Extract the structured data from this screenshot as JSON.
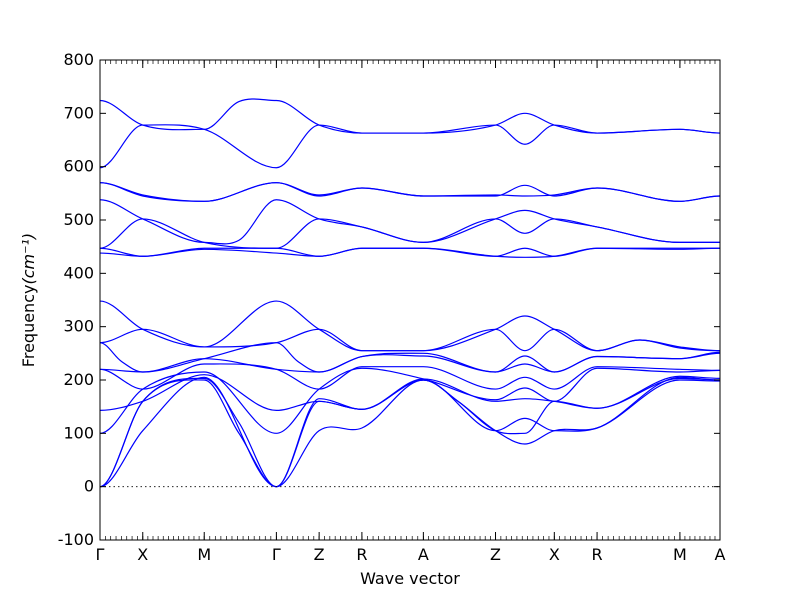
{
  "chart_data": {
    "type": "line",
    "title": "",
    "xlabel": "Wave vector",
    "ylabel": "Frequency",
    "ylabel_unit": "(cm⁻¹)",
    "ylim": [
      -100,
      800
    ],
    "yticks": [
      -100,
      0,
      100,
      200,
      300,
      400,
      500,
      600,
      700,
      800
    ],
    "zero_line": 0,
    "k_points": [
      {
        "label": "Γ",
        "x": 0.0
      },
      {
        "label": "X",
        "x": 0.8
      },
      {
        "label": "M",
        "x": 1.95
      },
      {
        "label": "Γ",
        "x": 3.3
      },
      {
        "label": "Z",
        "x": 4.1
      },
      {
        "label": "R",
        "x": 4.9
      },
      {
        "label": "A",
        "x": 6.05
      },
      {
        "label": "Z",
        "x": 7.4
      },
      {
        "label": "X",
        "x": 8.5
      },
      {
        "label": "R",
        "x": 9.3
      },
      {
        "label": "M",
        "x": 10.85
      },
      {
        "label": "A",
        "x": 11.6
      }
    ],
    "bands": [
      {
        "x": [
          0,
          0.8,
          1.95,
          2.6,
          3.3,
          4.1,
          4.9,
          6.05,
          6.7,
          7.4,
          7.95,
          8.5,
          9.3,
          10.85,
          11.6
        ],
        "y": [
          0,
          160,
          200,
          100,
          0,
          160,
          145,
          200,
          160,
          105,
          80,
          105,
          110,
          200,
          198
        ]
      },
      {
        "x": [
          0,
          0.8,
          1.95,
          2.6,
          3.3,
          4.1,
          4.9,
          6.05,
          6.7,
          7.4,
          7.95,
          8.5,
          9.3,
          10.85,
          11.6
        ],
        "y": [
          0,
          160,
          203,
          120,
          0,
          165,
          145,
          200,
          160,
          105,
          100,
          160,
          147,
          203,
          200
        ]
      },
      {
        "x": [
          0,
          0.8,
          1.95,
          3.3,
          4.1,
          4.9,
          6.05,
          7.4,
          7.95,
          8.5,
          9.3,
          10.85,
          11.6
        ],
        "y": [
          0,
          105,
          205,
          0,
          105,
          110,
          200,
          105,
          128,
          105,
          110,
          205,
          200
        ]
      },
      {
        "x": [
          0,
          0.8,
          1.95,
          3.3,
          4.1,
          4.9,
          6.05,
          7.4,
          7.95,
          8.5,
          9.3,
          10.85,
          11.6
        ],
        "y": [
          143,
          160,
          210,
          143,
          160,
          145,
          202,
          160,
          165,
          160,
          147,
          207,
          203
        ]
      },
      {
        "x": [
          0,
          0.8,
          1.95,
          3.3,
          4.1,
          4.9,
          6.05,
          7.4,
          7.95,
          8.5,
          9.3,
          10.85,
          11.6
        ],
        "y": [
          100,
          183,
          215,
          100,
          183,
          222,
          202,
          163,
          185,
          160,
          222,
          215,
          218
        ]
      },
      {
        "x": [
          0,
          0.8,
          1.95,
          3.3,
          4.1,
          4.9,
          6.05,
          7.4,
          7.95,
          8.5,
          9.3,
          10.85,
          11.6
        ],
        "y": [
          220,
          183,
          230,
          220,
          183,
          225,
          225,
          183,
          205,
          183,
          225,
          220,
          218
        ]
      },
      {
        "x": [
          0,
          0.8,
          1.95,
          3.3,
          4.1,
          4.9,
          6.05,
          7.4,
          7.95,
          8.5,
          9.3,
          10.85,
          11.6
        ],
        "y": [
          220,
          215,
          240,
          220,
          215,
          244,
          245,
          215,
          230,
          215,
          244,
          240,
          250
        ]
      },
      {
        "x": [
          0,
          0.4,
          0.8,
          1.95,
          3.3,
          3.7,
          4.1,
          4.9,
          6.05,
          7.4,
          7.95,
          8.5,
          9.3,
          10.85,
          11.6
        ],
        "y": [
          270,
          235,
          215,
          240,
          270,
          235,
          215,
          244,
          250,
          215,
          245,
          215,
          244,
          240,
          252
        ]
      },
      {
        "x": [
          0,
          0.8,
          1.95,
          3.3,
          4.1,
          4.9,
          6.05,
          7.4,
          7.95,
          8.5,
          9.3,
          10.1,
          10.85,
          11.6
        ],
        "y": [
          270,
          295,
          262,
          270,
          295,
          255,
          255,
          295,
          255,
          295,
          255,
          275,
          260,
          255
        ]
      },
      {
        "x": [
          0,
          0.8,
          1.95,
          3.3,
          4.1,
          4.9,
          6.05,
          7.4,
          7.95,
          8.5,
          9.3,
          10.1,
          10.85,
          11.6
        ],
        "y": [
          348,
          295,
          262,
          348,
          295,
          255,
          255,
          295,
          320,
          295,
          255,
          275,
          262,
          255
        ]
      },
      {
        "x": [
          0,
          0.8,
          1.95,
          3.3,
          4.1,
          4.9,
          6.05,
          7.4,
          7.95,
          8.5,
          9.3,
          10.85,
          11.6
        ],
        "y": [
          438,
          432,
          445,
          438,
          432,
          447,
          447,
          432,
          430,
          432,
          447,
          445,
          447
        ]
      },
      {
        "x": [
          0,
          0.8,
          1.95,
          3.3,
          4.1,
          4.9,
          6.05,
          7.4,
          7.95,
          8.5,
          9.3,
          10.85,
          11.6
        ],
        "y": [
          447,
          432,
          447,
          447,
          432,
          447,
          447,
          432,
          447,
          432,
          447,
          447,
          447
        ]
      },
      {
        "x": [
          0,
          0.8,
          1.95,
          3.3,
          4.1,
          4.9,
          6.05,
          7.4,
          7.95,
          8.5,
          9.3,
          10.85,
          11.6
        ],
        "y": [
          447,
          502,
          458,
          447,
          502,
          487,
          458,
          502,
          475,
          502,
          487,
          458,
          458
        ]
      },
      {
        "x": [
          0,
          0.8,
          1.95,
          2.6,
          3.3,
          4.1,
          4.9,
          6.05,
          7.4,
          7.95,
          8.5,
          9.3,
          10.85,
          11.6
        ],
        "y": [
          538,
          502,
          458,
          462,
          538,
          502,
          487,
          458,
          502,
          518,
          502,
          487,
          458,
          458
        ]
      },
      {
        "x": [
          0,
          0.8,
          1.95,
          3.3,
          4.1,
          4.9,
          6.05,
          7.4,
          7.95,
          8.5,
          9.3,
          10.85,
          11.6
        ],
        "y": [
          570,
          545,
          535,
          570,
          545,
          560,
          545,
          545,
          565,
          545,
          560,
          535,
          545
        ]
      },
      {
        "x": [
          0,
          0.8,
          1.95,
          3.3,
          4.1,
          4.9,
          6.05,
          7.4,
          7.95,
          8.5,
          9.3,
          10.85,
          11.6
        ],
        "y": [
          570,
          547,
          535,
          570,
          547,
          560,
          545,
          547,
          545,
          547,
          560,
          535,
          545
        ]
      },
      {
        "x": [
          0,
          0.8,
          1.95,
          3.3,
          4.1,
          4.9,
          6.05,
          7.4,
          7.95,
          8.5,
          9.3,
          10.85,
          11.6
        ],
        "y": [
          598,
          678,
          670,
          598,
          678,
          663,
          663,
          678,
          642,
          678,
          663,
          670,
          663
        ]
      },
      {
        "x": [
          0,
          0.8,
          1.95,
          2.6,
          3.3,
          4.1,
          4.9,
          6.05,
          7.4,
          7.95,
          8.5,
          9.3,
          10.85,
          11.6
        ],
        "y": [
          724,
          678,
          670,
          722,
          724,
          678,
          663,
          663,
          678,
          700,
          678,
          663,
          670,
          663
        ]
      }
    ]
  }
}
